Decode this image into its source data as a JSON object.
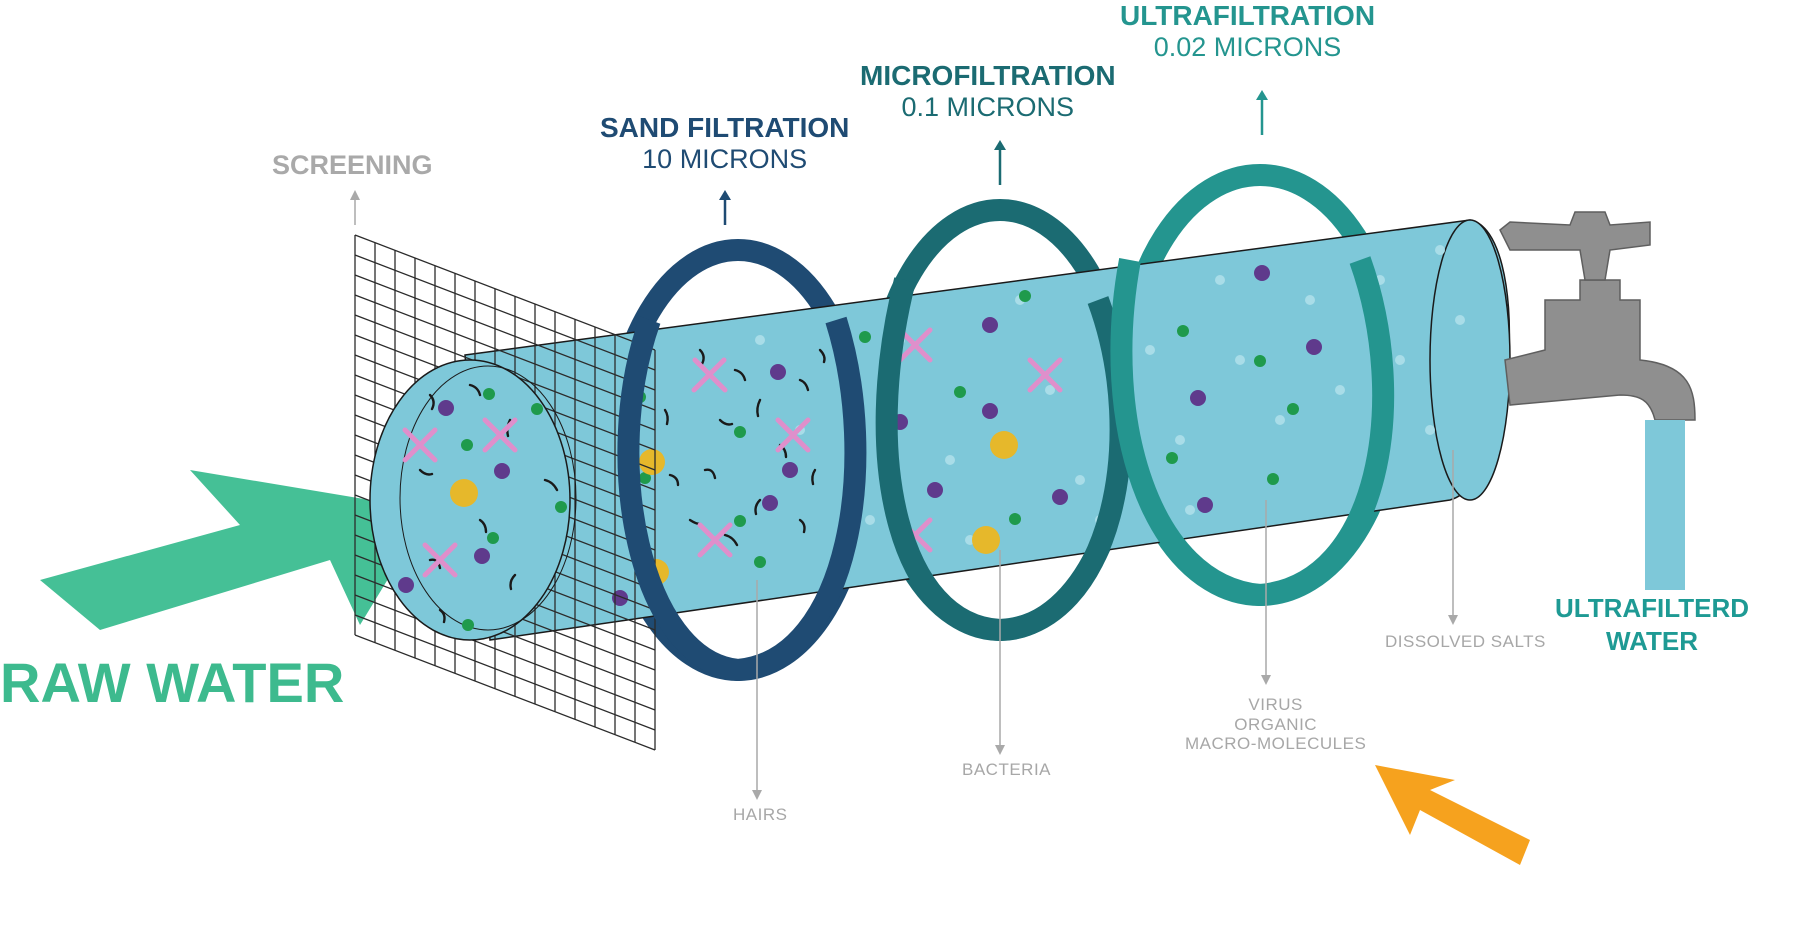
{
  "labels": {
    "raw_water": "RAW WATER",
    "screening": "SCREENING",
    "sand_title": "SAND FILTRATION",
    "sand_sub": "10 MICRONS",
    "micro_title": "MICROFILTRATION",
    "micro_sub": "0.1 MICRONS",
    "ultra_title": "ULTRAFILTRATION",
    "ultra_sub": "0.02 MICRONS",
    "hairs": "HAIRS",
    "bacteria": "BACTERIA",
    "virus": "VIRUS",
    "organic": "ORGANIC",
    "macro": "MACRO-MOLECULES",
    "dissolved_salts": "DISSOLVED SALTS",
    "ultrafiltered_1": "ULTRAFILTERD",
    "ultrafiltered_2": "WATER"
  },
  "colors": {
    "water": "#7ec8d9",
    "dot": "#a9dde8",
    "sand_ring": "#1f4b73",
    "micro_ring": "#1b6b72",
    "ultra_ring": "#24958f",
    "raw_arrow": "#45c096",
    "orange_arrow": "#f6a21e",
    "purple": "#5f3a8c",
    "green": "#1f9a4c",
    "pink": "#df8fcb",
    "yellow": "#e6b82b",
    "faucet": "#8f8f8f",
    "mesh": "#2b2b2b",
    "label_gray": "#a7a7a7"
  },
  "icons": {
    "faucet": "faucet-icon",
    "raw_arrow": "raw-water-arrow-icon",
    "orange_arrow": "orange-arrow-icon",
    "mesh": "screening-mesh-icon"
  }
}
